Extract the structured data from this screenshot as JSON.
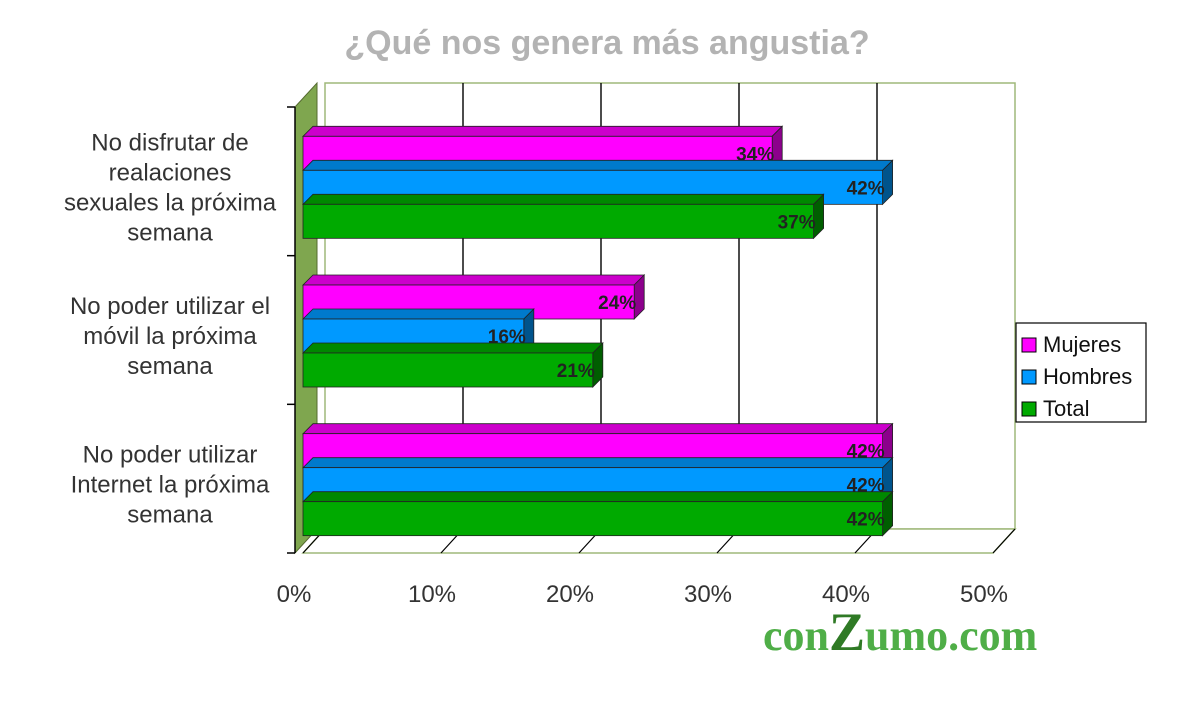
{
  "chart_data": {
    "type": "bar",
    "orientation": "horizontal",
    "3d": true,
    "title": "¿Qué nos genera más angustia?",
    "categories": [
      "No disfrutar de realaciones sexuales la próxima semana",
      "No poder utilizar el móvil la próxima semana",
      "No poder utilizar Internet la próxima semana"
    ],
    "category_lines": [
      [
        "No disfrutar de",
        "realaciones",
        "sexuales la próxima",
        "semana"
      ],
      [
        "No poder utilizar el",
        "móvil la próxima",
        "semana"
      ],
      [
        "No poder utilizar",
        "Internet la próxima",
        "semana"
      ]
    ],
    "series": [
      {
        "name": "Mujeres",
        "color": "#ff00ff",
        "values": [
          34,
          24,
          42
        ],
        "labels": [
          "34%",
          "24%",
          "42%"
        ]
      },
      {
        "name": "Hombres",
        "color": "#0099ff",
        "values": [
          42,
          16,
          42
        ],
        "labels": [
          "42%",
          "16%",
          "42%"
        ]
      },
      {
        "name": "Total",
        "color": "#00aa00",
        "values": [
          37,
          21,
          42
        ],
        "labels": [
          "37%",
          "21%",
          "42%"
        ]
      }
    ],
    "xlim": [
      0,
      50
    ],
    "xticks": [
      "0%",
      "10%",
      "20%",
      "30%",
      "40%",
      "50%"
    ],
    "grid": true,
    "legend_position": "right",
    "wall_color": "#7fa64f"
  },
  "brand": {
    "text_before": "con",
    "text_accent": "Z",
    "text_after": "umo.com"
  }
}
